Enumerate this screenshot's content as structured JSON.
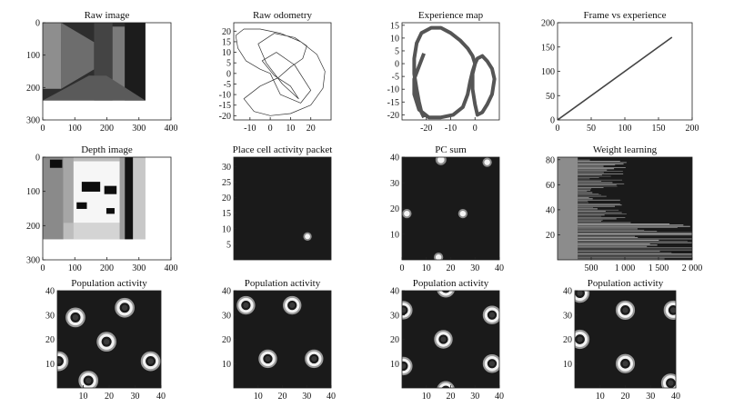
{
  "figure": {
    "background": "#ffffff",
    "dark_field": "#1a1a1a"
  },
  "chart_data": [
    {
      "id": "raw-image",
      "type": "image",
      "title": "Raw image",
      "xlim": [
        0,
        400
      ],
      "ylim": [
        300,
        0
      ],
      "xticks": [
        "0",
        "100",
        "200",
        "300",
        "400"
      ],
      "yticks": [
        "0",
        "100",
        "200",
        "300"
      ],
      "image_extent": {
        "x": [
          0,
          320
        ],
        "y": [
          0,
          240
        ]
      }
    },
    {
      "id": "raw-odometry",
      "type": "line",
      "title": "Raw odometry",
      "xlim": [
        -18,
        30
      ],
      "ylim": [
        -22,
        24
      ],
      "xticks": [
        "-10",
        "0",
        "10",
        "20"
      ],
      "yticks": [
        "-20",
        "-15",
        "-10",
        "-5",
        "0",
        "5",
        "10",
        "15",
        "20"
      ],
      "series": [
        {
          "color": "#333333",
          "x": [
            0,
            -5,
            -12,
            -16,
            -17,
            -13,
            -5,
            5,
            15,
            23,
            27,
            26,
            20,
            10,
            0,
            -8,
            -13,
            -5,
            4,
            10,
            16,
            18,
            12,
            2,
            -6,
            -2,
            6,
            14,
            10,
            2,
            -4,
            3,
            12,
            20,
            15,
            5,
            0
          ],
          "y": [
            0,
            2,
            6,
            12,
            18,
            21,
            21,
            19,
            15,
            9,
            1,
            -7,
            -15,
            -19,
            -20,
            -18,
            -12,
            -6,
            -2,
            3,
            7,
            13,
            17,
            19,
            14,
            5,
            -5,
            -12,
            -6,
            -1,
            6,
            10,
            4,
            -8,
            -14,
            -10,
            0
          ]
        }
      ]
    },
    {
      "id": "experience-map",
      "type": "line",
      "title": "Experience map",
      "xlim": [
        -30,
        10
      ],
      "ylim": [
        -22,
        16
      ],
      "xticks": [
        "-20",
        "-10",
        "0"
      ],
      "yticks": [
        "-20",
        "-15",
        "-10",
        "-5",
        "0",
        "5",
        "10",
        "15"
      ],
      "series": [
        {
          "color": "#555555",
          "x": [
            -21,
            -22,
            -23,
            -24,
            -25,
            -25,
            -24,
            -22,
            -18,
            -14,
            -10,
            -6,
            -3,
            -1,
            0,
            -1,
            -2,
            -3,
            -5,
            -9,
            -14,
            -19,
            -23,
            -25,
            -25,
            -23,
            -21
          ],
          "y": [
            -21,
            -19,
            -15,
            -10,
            -4,
            2,
            8,
            12,
            14,
            14,
            12,
            9,
            6,
            3,
            0,
            -3,
            -7,
            -12,
            -17,
            -20,
            -21,
            -21,
            -18,
            -12,
            -6,
            -1,
            4
          ]
        },
        {
          "color": "#555555",
          "x": [
            0,
            1,
            3,
            5,
            7,
            8,
            7,
            5,
            3,
            1,
            0,
            -1,
            -1,
            0
          ],
          "y": [
            0,
            2,
            3,
            1,
            -2,
            -6,
            -12,
            -16,
            -19,
            -20,
            -16,
            -10,
            -4,
            0
          ]
        }
      ]
    },
    {
      "id": "frame-vs-experience",
      "type": "line",
      "title": "Frame vs experience",
      "xlim": [
        0,
        200
      ],
      "ylim": [
        0,
        200
      ],
      "xticks": [
        "0",
        "50",
        "100",
        "150",
        "200"
      ],
      "yticks": [
        "0",
        "50",
        "100",
        "150",
        "200"
      ],
      "series": [
        {
          "color": "#444444",
          "x": [
            0,
            170
          ],
          "y": [
            0,
            170
          ]
        }
      ]
    },
    {
      "id": "depth-image",
      "type": "image",
      "title": "Depth image",
      "xlim": [
        0,
        400
      ],
      "ylim": [
        300,
        0
      ],
      "xticks": [
        "0",
        "100",
        "200",
        "300",
        "400"
      ],
      "yticks": [
        "0",
        "100",
        "200",
        "300"
      ],
      "image_extent": {
        "x": [
          0,
          320
        ],
        "y": [
          0,
          240
        ]
      }
    },
    {
      "id": "place-cell-packet",
      "type": "heatmap",
      "title": "Place cell activity packet",
      "xlim": [
        0,
        33
      ],
      "ylim": [
        0,
        33
      ],
      "xticks": [],
      "yticks": [
        "5",
        "10",
        "15",
        "20",
        "25",
        "30"
      ],
      "blobs": [
        {
          "x": 25,
          "y": 7.5,
          "r": 0.9,
          "style": "spot"
        }
      ]
    },
    {
      "id": "pc-sum",
      "type": "heatmap",
      "title": "PC sum",
      "xlim": [
        0,
        40
      ],
      "ylim": [
        0,
        40
      ],
      "xticks": [
        "0",
        "10",
        "20",
        "30",
        "40"
      ],
      "yticks": [
        "10",
        "20",
        "30",
        "40"
      ],
      "blobs": [
        {
          "x": 16,
          "y": 39,
          "r": 1.4,
          "style": "spot"
        },
        {
          "x": 35,
          "y": 38,
          "r": 1.2,
          "style": "spot"
        },
        {
          "x": 2,
          "y": 18,
          "r": 1.2,
          "style": "spot"
        },
        {
          "x": 25,
          "y": 18,
          "r": 1.2,
          "style": "spot"
        },
        {
          "x": 15,
          "y": 1,
          "r": 1.2,
          "style": "spot"
        }
      ]
    },
    {
      "id": "weight-learning",
      "type": "heatmap",
      "title": "Weight learning",
      "xlim": [
        0,
        2000
      ],
      "ylim": [
        0,
        82
      ],
      "xticks": [
        "500",
        "1 000",
        "1 500",
        "2 000"
      ],
      "xtick_values": [
        500,
        1000,
        1500,
        2000
      ],
      "yticks": [
        "20",
        "40",
        "60",
        "80"
      ],
      "learn_start": 300,
      "rows": 80
    },
    {
      "id": "population-1",
      "type": "heatmap",
      "title": "Population activity",
      "xlim": [
        0,
        40
      ],
      "ylim": [
        0,
        40
      ],
      "xticks": [
        "10",
        "20",
        "30",
        "40"
      ],
      "yticks": [
        "10",
        "20",
        "30",
        "40"
      ],
      "blobs": [
        {
          "x": 7,
          "y": 29,
          "r": 2.5,
          "style": "ring"
        },
        {
          "x": 26,
          "y": 33,
          "r": 2.5,
          "style": "ring"
        },
        {
          "x": 19,
          "y": 19,
          "r": 2.5,
          "style": "ring"
        },
        {
          "x": 0.5,
          "y": 11,
          "r": 2.5,
          "style": "ring"
        },
        {
          "x": 36,
          "y": 11,
          "r": 2.5,
          "style": "ring"
        },
        {
          "x": 12,
          "y": 3,
          "r": 2.5,
          "style": "ring"
        }
      ]
    },
    {
      "id": "population-2",
      "type": "heatmap",
      "title": "Population activity",
      "xlim": [
        0,
        40
      ],
      "ylim": [
        0,
        40
      ],
      "xticks": [
        "10",
        "20",
        "30",
        "40"
      ],
      "yticks": [
        "10",
        "20",
        "30",
        "40"
      ],
      "blobs": [
        {
          "x": 5,
          "y": 34,
          "r": 2.5,
          "style": "ring"
        },
        {
          "x": 24,
          "y": 34,
          "r": 2.5,
          "style": "ring"
        },
        {
          "x": 14,
          "y": 12,
          "r": 2.5,
          "style": "ring"
        },
        {
          "x": 33,
          "y": 12,
          "r": 2.5,
          "style": "ring"
        }
      ]
    },
    {
      "id": "population-3",
      "type": "heatmap",
      "title": "Population activity",
      "xlim": [
        0,
        40
      ],
      "ylim": [
        0,
        40
      ],
      "xticks": [
        "10",
        "20",
        "30",
        "40"
      ],
      "yticks": [
        "10",
        "20",
        "30",
        "40"
      ],
      "blobs": [
        {
          "x": 18,
          "y": 41,
          "r": 2.5,
          "style": "ring"
        },
        {
          "x": 0.5,
          "y": 32,
          "r": 2.5,
          "style": "ring"
        },
        {
          "x": 37,
          "y": 30,
          "r": 2.5,
          "style": "ring"
        },
        {
          "x": 17,
          "y": 20,
          "r": 2.5,
          "style": "ring"
        },
        {
          "x": 0.5,
          "y": 9,
          "r": 2.5,
          "style": "ring"
        },
        {
          "x": 37,
          "y": 10,
          "r": 2.5,
          "style": "ring"
        },
        {
          "x": 18,
          "y": -1,
          "r": 2.5,
          "style": "ring"
        }
      ]
    },
    {
      "id": "population-4",
      "type": "heatmap",
      "title": "Population activity",
      "xlim": [
        0,
        40
      ],
      "ylim": [
        0,
        40
      ],
      "xticks": [
        "10",
        "20",
        "30",
        "40"
      ],
      "yticks": [
        "10",
        "20",
        "30",
        "40"
      ],
      "blobs": [
        {
          "x": 2,
          "y": 39,
          "r": 2.5,
          "style": "ring"
        },
        {
          "x": 20,
          "y": 32,
          "r": 2.5,
          "style": "ring"
        },
        {
          "x": 39,
          "y": 32,
          "r": 2.5,
          "style": "ring"
        },
        {
          "x": 2,
          "y": 20,
          "r": 2.5,
          "style": "ring"
        },
        {
          "x": 20,
          "y": 10,
          "r": 2.5,
          "style": "ring"
        },
        {
          "x": 38,
          "y": 2,
          "r": 2.5,
          "style": "ring"
        }
      ]
    }
  ]
}
